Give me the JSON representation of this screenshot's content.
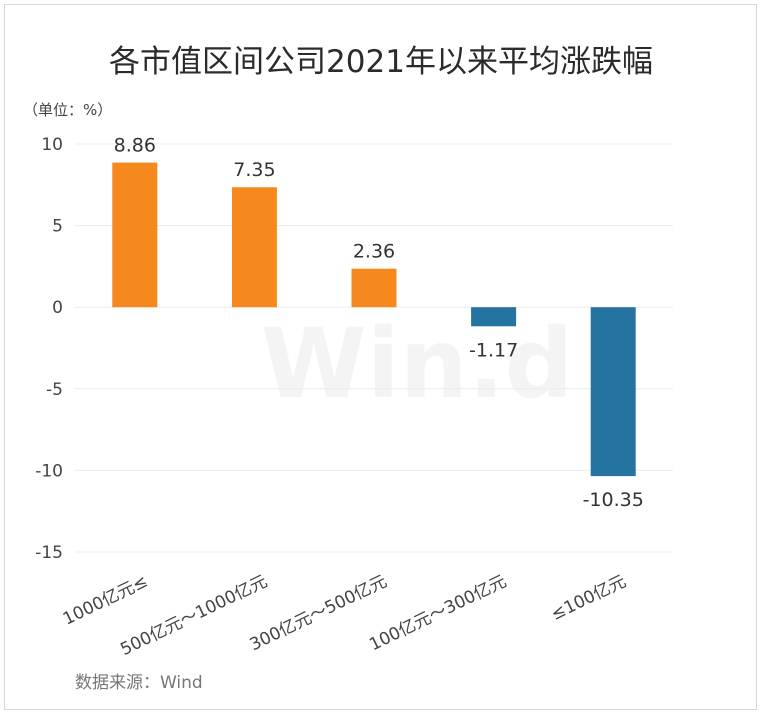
{
  "chart_data": {
    "type": "bar",
    "title": "各市值区间公司2021年以来平均涨跌幅",
    "unit_label": "（单位：%）",
    "categories": [
      "1000亿元≤",
      "500亿元～1000亿元",
      "300亿元～500亿元",
      "100亿元～300亿元",
      "≤100亿元"
    ],
    "values": [
      8.86,
      7.35,
      2.36,
      -1.17,
      -10.35
    ],
    "value_labels": [
      "8.86",
      "7.35",
      "2.36",
      "-1.17",
      "-10.35"
    ],
    "ylim": [
      -15,
      10
    ],
    "yticks": [
      10,
      5,
      0,
      -5,
      -10,
      -15
    ],
    "ytick_labels": [
      "10",
      "5",
      "0",
      "-5",
      "-10",
      "-15"
    ],
    "grid": true,
    "legend": "none",
    "colors": {
      "positive": "#F5891E",
      "negative": "#2473A0"
    }
  },
  "source": "数据来源：Wind",
  "watermark": "Win.d"
}
